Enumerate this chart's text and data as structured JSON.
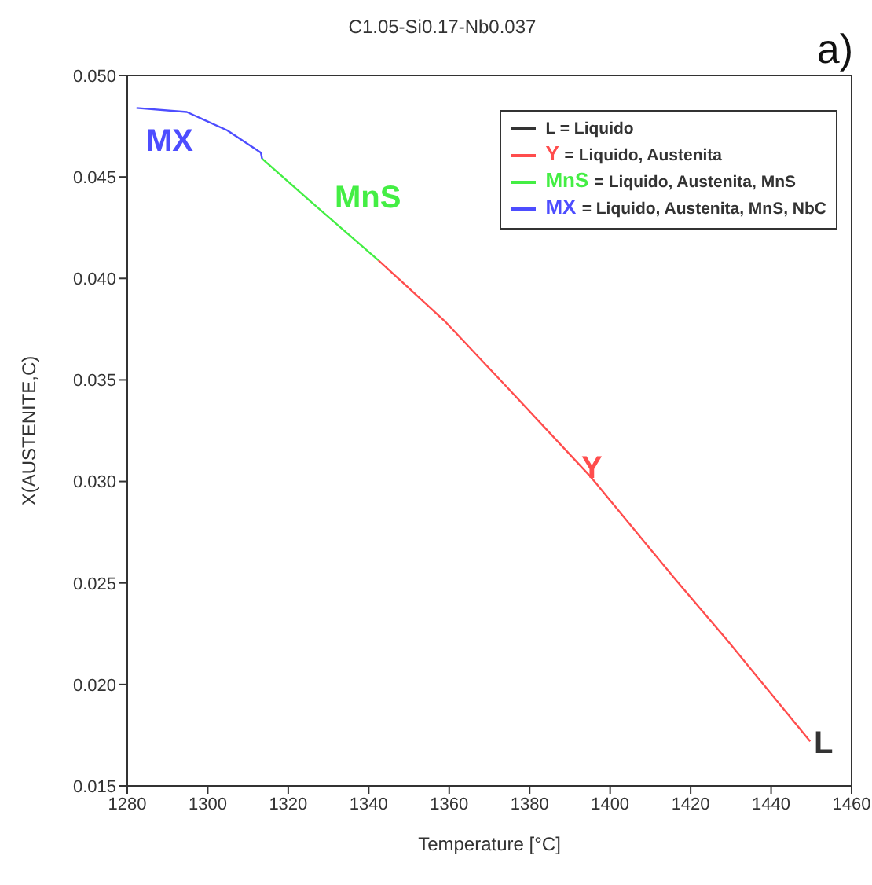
{
  "chart_data": {
    "type": "line",
    "title": "C1.05-Si0.17-Nb0.037",
    "xlabel": "Temperature [°C]",
    "ylabel": "X(AUSTENITE,C)",
    "xlim": [
      1280,
      1460
    ],
    "xticks": [
      1280,
      1300,
      1320,
      1340,
      1360,
      1380,
      1400,
      1420,
      1440,
      1460
    ],
    "ylim": [
      0.015,
      0.05
    ],
    "yticks": [
      0.015,
      {
        "value": 0.02,
        "label": "0.020"
      },
      0.025,
      {
        "value": 0.03,
        "label": "0.030"
      },
      0.035,
      {
        "value": 0.04,
        "label": "0.040"
      },
      0.045,
      {
        "value": 0.05,
        "label": "0.050"
      }
    ],
    "legend": "top right",
    "marker": "none",
    "line_style": "solid",
    "series": [
      {
        "name": "L = Liquido",
        "color": "#333333"
      },
      {
        "name": "Y = Liquido, Austenita",
        "color": "#ff4d4d",
        "x": [
          1342.4,
          1358.9,
          1376.0,
          1395.3,
          1416.1,
          1429.0,
          1449.7
        ],
        "values": [
          0.0409,
          0.0379,
          0.0343,
          0.0302,
          0.0252,
          0.0222,
          0.0172
        ]
      },
      {
        "name": "MnS = Liquido, Austenita, MnS",
        "color": "#44ee44",
        "x": [
          1313.5,
          1327.8,
          1342.4
        ],
        "values": [
          0.0459,
          0.0434,
          0.0409
        ]
      },
      {
        "name": "MX = Liquido, Austenita, MnS, NbC",
        "color": "#4d4dff",
        "x": [
          1282.3,
          1294.8,
          1304.8,
          1313.2,
          1313.5
        ],
        "values": [
          0.0484,
          0.0482,
          0.0473,
          0.0462,
          0.0459
        ]
      }
    ],
    "annotations": [
      "L",
      "Y",
      "MnS",
      "MX",
      "a)"
    ]
  }
}
